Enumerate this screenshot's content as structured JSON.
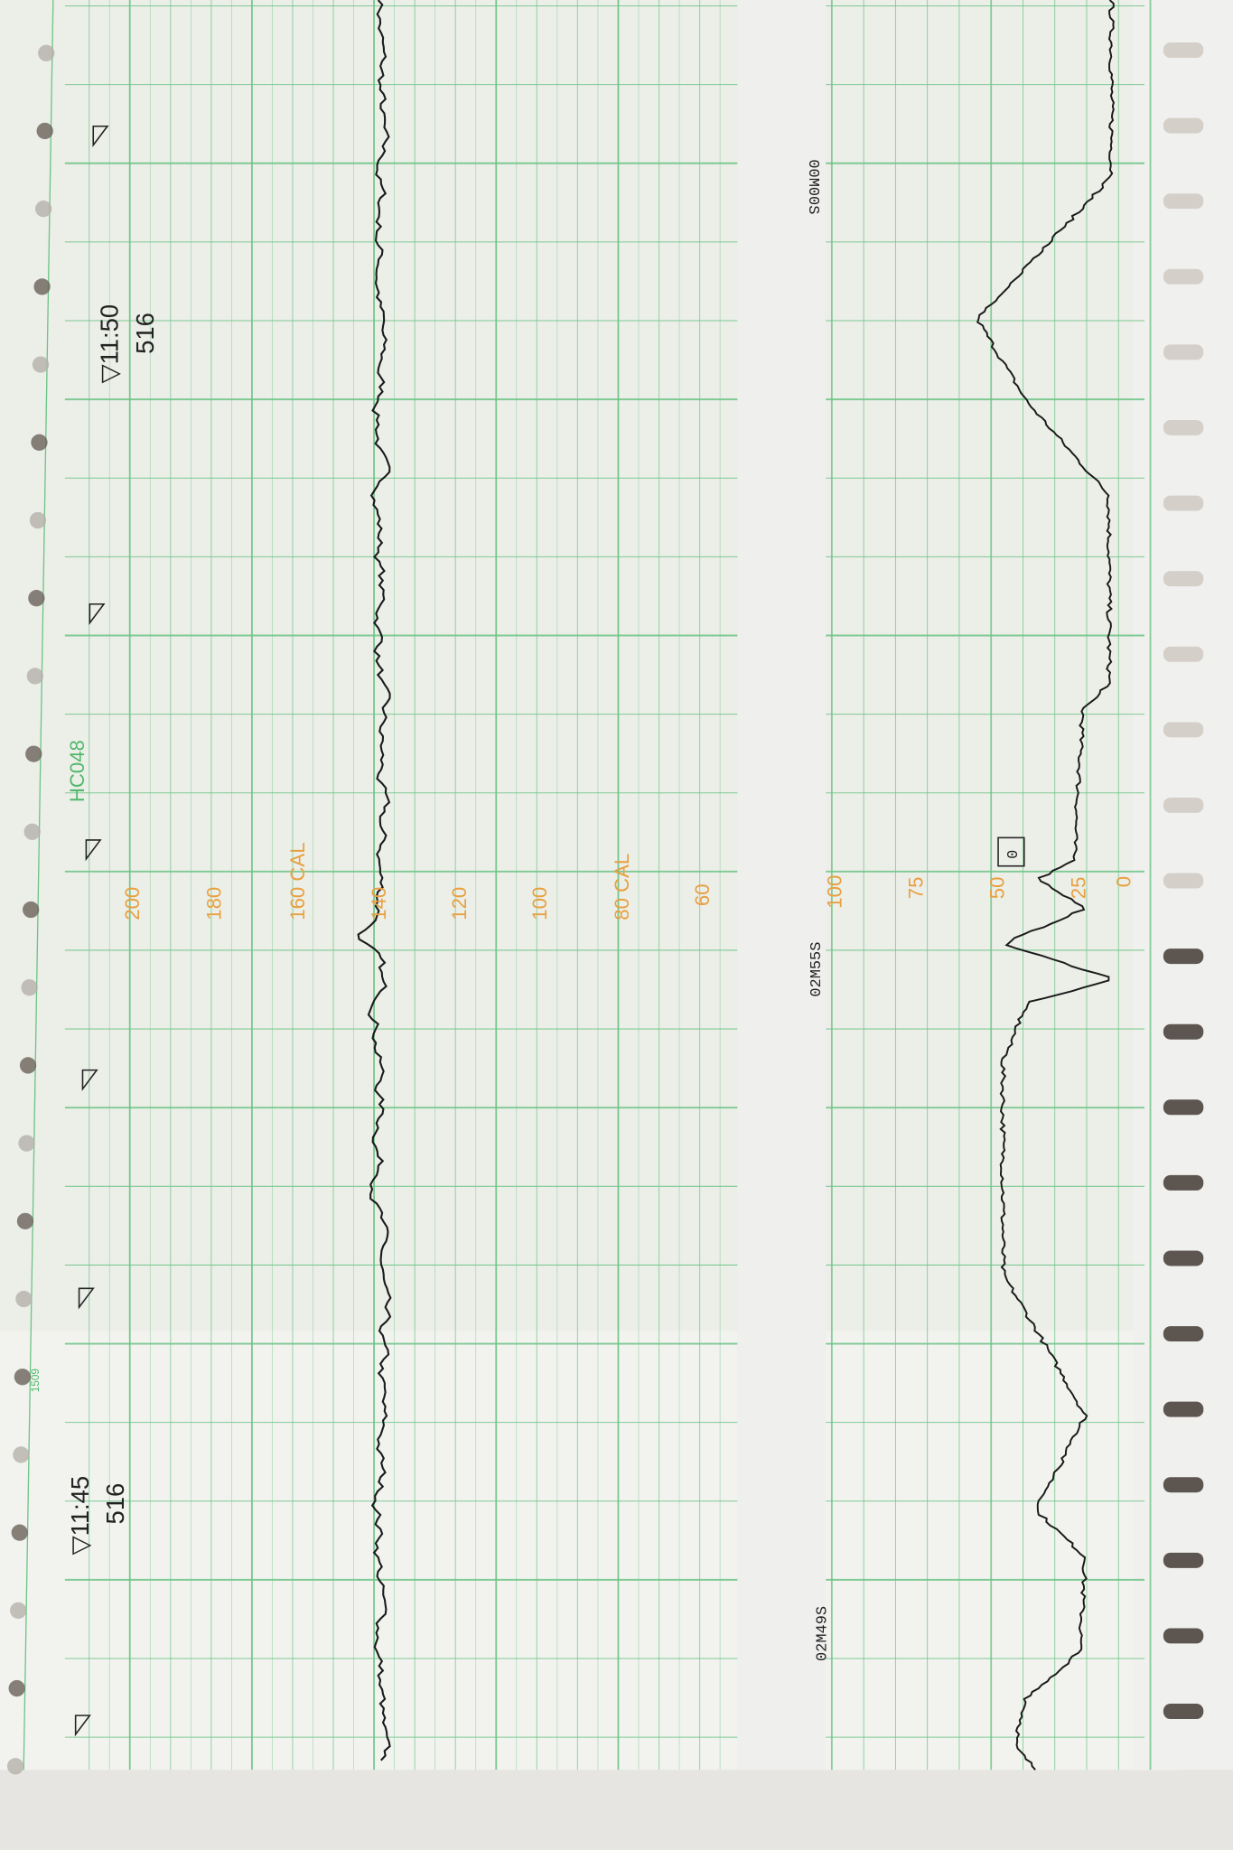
{
  "strip": {
    "code": "HC048",
    "sheet_number": "1509",
    "fhr_scale": [
      "200",
      "180",
      "160 CAL",
      "140",
      "120",
      "100",
      "80 CAL",
      "60"
    ],
    "toco_scale": [
      "100",
      "75",
      "50",
      "25",
      "0"
    ],
    "elapsed": [
      "00M00S",
      "02M55S",
      "02M49S"
    ],
    "notes": [
      {
        "time": "▽11:50",
        "value": "516"
      },
      {
        "time": "▽11:45",
        "value": "516"
      }
    ],
    "zero_mark": "0",
    "colors": {
      "paper": "#eceee8",
      "grid": "#6cc486",
      "scale": "#e8a040",
      "trace": "#1a1a1a"
    }
  }
}
